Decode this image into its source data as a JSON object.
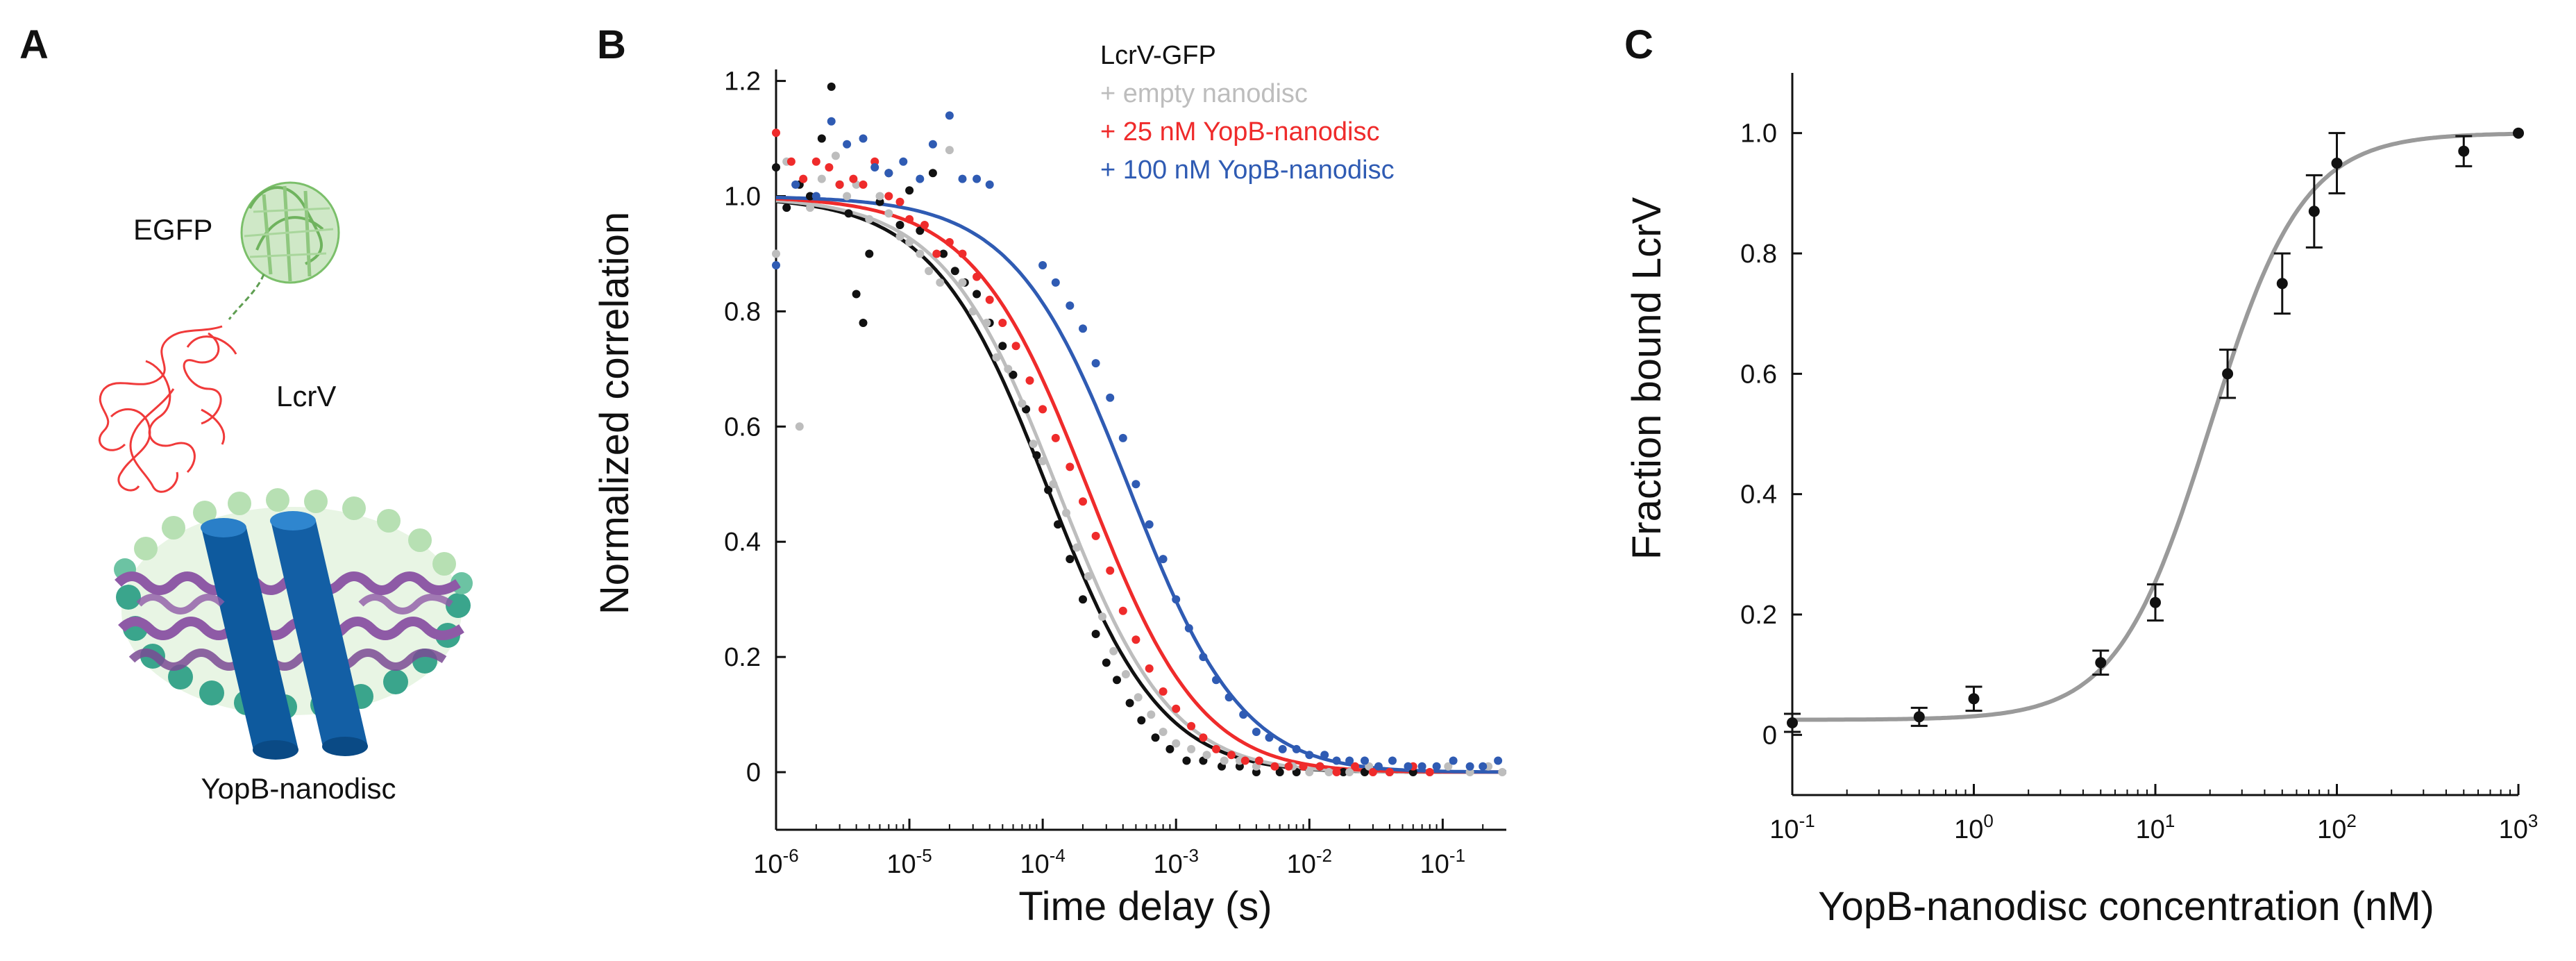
{
  "panels": {
    "A": {
      "letter": "A",
      "labels": {
        "egfp": "EGFP",
        "lcrv": "LcrV",
        "nanodisc": "YopB-nanodisc"
      }
    },
    "B": {
      "letter": "B"
    },
    "C": {
      "letter": "C"
    }
  },
  "colors": {
    "black": "#111111",
    "grey": "#bdbdbd",
    "red": "#ef2b2b",
    "blue": "#2f5bb3",
    "fit_c": "#9a9a9a",
    "egfp_green": "#8fc77f",
    "lcrv_red": "#f03a3a",
    "helix_blue": "#0e5a9e",
    "belt_purple": "#8e5aa6",
    "bead_dark": "#3aa58c",
    "bead_light": "#b7e0b3"
  },
  "chart_data": [
    {
      "id": "B",
      "type": "scatter",
      "subtype": "FCS autocorrelation with fitted curves",
      "xlabel": "Time delay (s)",
      "ylabel": "Normalized correlation",
      "xscale": "log",
      "xlim": [
        1e-06,
        0.3
      ],
      "ylim": [
        -0.1,
        1.22
      ],
      "xticks": [
        {
          "v": 1e-06,
          "base": "10",
          "exp": "-6"
        },
        {
          "v": 1e-05,
          "base": "10",
          "exp": "-5"
        },
        {
          "v": 0.0001,
          "base": "10",
          "exp": "-4"
        },
        {
          "v": 0.001,
          "base": "10",
          "exp": "-3"
        },
        {
          "v": 0.01,
          "base": "10",
          "exp": "-2"
        },
        {
          "v": 0.1,
          "base": "10",
          "exp": "-1"
        }
      ],
      "yticks": [
        0,
        0.2,
        0.4,
        0.6,
        0.8,
        1.0,
        1.2
      ],
      "ytick_labels": [
        "0",
        "0.2",
        "0.4",
        "0.6",
        "0.8",
        "1.0",
        "1.2"
      ],
      "legend": {
        "title": "LcrV-GFP",
        "position": "top-right",
        "entries": [
          "+ empty nanodisc",
          "+ 25 nM YopB-nanodisc",
          "+ 100 nM YopB-nanodisc"
        ]
      },
      "series": [
        {
          "name": "LcrV-GFP",
          "color": "black",
          "tau_fit": 0.00011,
          "points": [
            [
              1e-06,
              1.05
            ],
            [
              1.2e-06,
              0.98
            ],
            [
              1.5e-06,
              1.02
            ],
            [
              1.8e-06,
              1.0
            ],
            [
              2.2e-06,
              1.1
            ],
            [
              2.6e-06,
              1.19
            ],
            [
              3e-06,
              1.02
            ],
            [
              3.5e-06,
              0.97
            ],
            [
              4e-06,
              0.83
            ],
            [
              4.5e-06,
              0.78
            ],
            [
              5e-06,
              0.9
            ],
            [
              6e-06,
              0.99
            ],
            [
              7e-06,
              1.04
            ],
            [
              8.5e-06,
              0.95
            ],
            [
              1e-05,
              1.01
            ],
            [
              1.2e-05,
              0.94
            ],
            [
              1.5e-05,
              1.04
            ],
            [
              1.8e-05,
              0.9
            ],
            [
              2.2e-05,
              0.87
            ],
            [
              2.6e-05,
              0.85
            ],
            [
              3.2e-05,
              0.83
            ],
            [
              4e-05,
              0.78
            ],
            [
              5e-05,
              0.74
            ],
            [
              6e-05,
              0.69
            ],
            [
              7.5e-05,
              0.63
            ],
            [
              9e-05,
              0.55
            ],
            [
              0.00011,
              0.49
            ],
            [
              0.00013,
              0.43
            ],
            [
              0.00016,
              0.37
            ],
            [
              0.0002,
              0.3
            ],
            [
              0.00025,
              0.24
            ],
            [
              0.0003,
              0.19
            ],
            [
              0.00036,
              0.16
            ],
            [
              0.00045,
              0.12
            ],
            [
              0.00055,
              0.09
            ],
            [
              0.0007,
              0.06
            ],
            [
              0.0009,
              0.04
            ],
            [
              0.0012,
              0.02
            ],
            [
              0.0016,
              0.02
            ],
            [
              0.0022,
              0.01
            ],
            [
              0.003,
              0.01
            ],
            [
              0.004,
              0.0
            ],
            [
              0.006,
              0.0
            ],
            [
              0.008,
              0.0
            ],
            [
              0.012,
              0.01
            ],
            [
              0.018,
              0.0
            ],
            [
              0.026,
              0.0
            ],
            [
              0.04,
              0.0
            ],
            [
              0.06,
              0.0
            ]
          ]
        },
        {
          "name": "+ empty nanodisc",
          "color": "grey",
          "tau_fit": 0.00013,
          "points": [
            [
              1e-06,
              0.9
            ],
            [
              1.2e-06,
              1.06
            ],
            [
              1.5e-06,
              0.6
            ],
            [
              1.8e-06,
              0.98
            ],
            [
              2.2e-06,
              1.03
            ],
            [
              2.8e-06,
              1.07
            ],
            [
              3.4e-06,
              1.0
            ],
            [
              4e-06,
              1.02
            ],
            [
              5e-06,
              0.96
            ],
            [
              6e-06,
              1.0
            ],
            [
              7e-06,
              0.97
            ],
            [
              8.5e-06,
              0.93
            ],
            [
              1e-05,
              0.92
            ],
            [
              1.2e-05,
              0.9
            ],
            [
              1.4e-05,
              0.87
            ],
            [
              1.7e-05,
              0.85
            ],
            [
              2e-05,
              1.08
            ],
            [
              2.5e-05,
              0.85
            ],
            [
              3e-05,
              0.8
            ],
            [
              3.8e-05,
              0.78
            ],
            [
              4.5e-05,
              0.72
            ],
            [
              5.5e-05,
              0.7
            ],
            [
              7e-05,
              0.64
            ],
            [
              8.5e-05,
              0.57
            ],
            [
              0.0001,
              0.54
            ],
            [
              0.00012,
              0.5
            ],
            [
              0.00015,
              0.45
            ],
            [
              0.00018,
              0.39
            ],
            [
              0.00022,
              0.34
            ],
            [
              0.00028,
              0.27
            ],
            [
              0.00034,
              0.21
            ],
            [
              0.00042,
              0.17
            ],
            [
              0.00052,
              0.13
            ],
            [
              0.00065,
              0.1
            ],
            [
              0.0008,
              0.07
            ],
            [
              0.001,
              0.05
            ],
            [
              0.0013,
              0.04
            ],
            [
              0.0017,
              0.03
            ],
            [
              0.0023,
              0.02
            ],
            [
              0.003,
              0.02
            ],
            [
              0.004,
              0.01
            ],
            [
              0.0055,
              0.01
            ],
            [
              0.0075,
              0.01
            ],
            [
              0.01,
              0.0
            ],
            [
              0.014,
              0.0
            ],
            [
              0.02,
              0.0
            ],
            [
              0.028,
              0.01
            ],
            [
              0.04,
              0.0
            ],
            [
              0.055,
              0.01
            ],
            [
              0.08,
              0.0
            ],
            [
              0.11,
              0.01
            ],
            [
              0.16,
              0.0
            ],
            [
              0.22,
              0.01
            ],
            [
              0.28,
              0.0
            ]
          ]
        },
        {
          "name": "+ 25 nM YopB-nanodisc",
          "color": "red",
          "tau_fit": 0.00022,
          "points": [
            [
              1e-06,
              1.11
            ],
            [
              1.3e-06,
              1.06
            ],
            [
              1.6e-06,
              1.03
            ],
            [
              2e-06,
              1.06
            ],
            [
              2.5e-06,
              1.05
            ],
            [
              3e-06,
              1.02
            ],
            [
              3.8e-06,
              1.03
            ],
            [
              4.5e-06,
              1.02
            ],
            [
              5.5e-06,
              1.06
            ],
            [
              7e-06,
              1.0
            ],
            [
              8.5e-06,
              0.99
            ],
            [
              1e-05,
              0.96
            ],
            [
              1.3e-05,
              0.95
            ],
            [
              1.6e-05,
              0.9
            ],
            [
              2e-05,
              0.92
            ],
            [
              2.5e-05,
              0.9
            ],
            [
              3.2e-05,
              0.86
            ],
            [
              4e-05,
              0.82
            ],
            [
              5e-05,
              0.78
            ],
            [
              6.3e-05,
              0.74
            ],
            [
              8e-05,
              0.68
            ],
            [
              0.0001,
              0.63
            ],
            [
              0.000125,
              0.58
            ],
            [
              0.00016,
              0.53
            ],
            [
              0.0002,
              0.47
            ],
            [
              0.00025,
              0.41
            ],
            [
              0.00032,
              0.35
            ],
            [
              0.0004,
              0.28
            ],
            [
              0.0005,
              0.23
            ],
            [
              0.00063,
              0.18
            ],
            [
              0.0008,
              0.14
            ],
            [
              0.001,
              0.11
            ],
            [
              0.0013,
              0.08
            ],
            [
              0.0016,
              0.06
            ],
            [
              0.002,
              0.04
            ],
            [
              0.0026,
              0.03
            ],
            [
              0.0033,
              0.02
            ],
            [
              0.0042,
              0.02
            ],
            [
              0.0055,
              0.01
            ],
            [
              0.007,
              0.01
            ],
            [
              0.009,
              0.01
            ],
            [
              0.012,
              0.01
            ],
            [
              0.016,
              0.0
            ],
            [
              0.022,
              0.01
            ],
            [
              0.03,
              0.0
            ],
            [
              0.04,
              0.0
            ],
            [
              0.06,
              0.01
            ],
            [
              0.08,
              0.0
            ]
          ]
        },
        {
          "name": "+ 100 nM YopB-nanodisc",
          "color": "blue",
          "tau_fit": 0.00045,
          "points": [
            [
              1e-06,
              0.88
            ],
            [
              1.4e-06,
              1.02
            ],
            [
              2e-06,
              1.0
            ],
            [
              2.6e-06,
              1.13
            ],
            [
              3.4e-06,
              1.09
            ],
            [
              4.5e-06,
              1.1
            ],
            [
              5.5e-06,
              1.05
            ],
            [
              7e-06,
              1.04
            ],
            [
              9e-06,
              1.06
            ],
            [
              1.2e-05,
              1.03
            ],
            [
              1.5e-05,
              1.09
            ],
            [
              2e-05,
              1.14
            ],
            [
              2.5e-05,
              1.03
            ],
            [
              3.2e-05,
              1.03
            ],
            [
              4e-05,
              1.02
            ],
            [
              0.0001,
              0.88
            ],
            [
              0.000125,
              0.85
            ],
            [
              0.00016,
              0.81
            ],
            [
              0.0002,
              0.77
            ],
            [
              0.00025,
              0.71
            ],
            [
              0.00032,
              0.65
            ],
            [
              0.0004,
              0.58
            ],
            [
              0.0005,
              0.5
            ],
            [
              0.00063,
              0.43
            ],
            [
              0.0008,
              0.37
            ],
            [
              0.001,
              0.3
            ],
            [
              0.00125,
              0.25
            ],
            [
              0.0016,
              0.2
            ],
            [
              0.002,
              0.16
            ],
            [
              0.0025,
              0.13
            ],
            [
              0.0032,
              0.1
            ],
            [
              0.004,
              0.07
            ],
            [
              0.005,
              0.06
            ],
            [
              0.0063,
              0.04
            ],
            [
              0.008,
              0.04
            ],
            [
              0.01,
              0.03
            ],
            [
              0.013,
              0.03
            ],
            [
              0.016,
              0.02
            ],
            [
              0.02,
              0.02
            ],
            [
              0.026,
              0.02
            ],
            [
              0.033,
              0.01
            ],
            [
              0.042,
              0.02
            ],
            [
              0.055,
              0.01
            ],
            [
              0.07,
              0.01
            ],
            [
              0.09,
              0.01
            ],
            [
              0.12,
              0.02
            ],
            [
              0.16,
              0.01
            ],
            [
              0.2,
              0.01
            ],
            [
              0.26,
              0.02
            ]
          ]
        }
      ]
    },
    {
      "id": "C",
      "type": "scatter",
      "subtype": "binding curve with error bars and sigmoidal fit",
      "xlabel": "YopB-nanodisc concentration (nM)",
      "ylabel": "Fraction bound LcrV",
      "xscale": "log",
      "xlim": [
        0.1,
        1000
      ],
      "ylim": [
        -0.1,
        1.1
      ],
      "xticks": [
        {
          "v": 0.1,
          "base": "10",
          "exp": "-1"
        },
        {
          "v": 1,
          "base": "10",
          "exp": "0"
        },
        {
          "v": 10,
          "base": "10",
          "exp": "1"
        },
        {
          "v": 100,
          "base": "10",
          "exp": "2"
        },
        {
          "v": 1000,
          "base": "10",
          "exp": "3"
        }
      ],
      "yticks": [
        0,
        0.2,
        0.4,
        0.6,
        0.8,
        1.0
      ],
      "ytick_labels": [
        "0",
        "0.2",
        "0.4",
        "0.6",
        "0.8",
        "1.0"
      ],
      "fit": {
        "type": "hill",
        "bottom": 0.025,
        "top": 1.0,
        "ec50": 20,
        "hill": 1.7
      },
      "points": [
        {
          "x": 0.1,
          "y": 0.02,
          "err": 0.015
        },
        {
          "x": 0.5,
          "y": 0.03,
          "err": 0.015
        },
        {
          "x": 1,
          "y": 0.06,
          "err": 0.02
        },
        {
          "x": 5,
          "y": 0.12,
          "err": 0.02
        },
        {
          "x": 10,
          "y": 0.22,
          "err": 0.03
        },
        {
          "x": 25,
          "y": 0.6,
          "err": 0.04
        },
        {
          "x": 50,
          "y": 0.75,
          "err": 0.05
        },
        {
          "x": 75,
          "y": 0.87,
          "err": 0.06
        },
        {
          "x": 100,
          "y": 0.95,
          "err": 0.05
        },
        {
          "x": 500,
          "y": 0.97,
          "err": 0.025
        },
        {
          "x": 1000,
          "y": 1.0,
          "err": 0.0
        }
      ]
    }
  ]
}
